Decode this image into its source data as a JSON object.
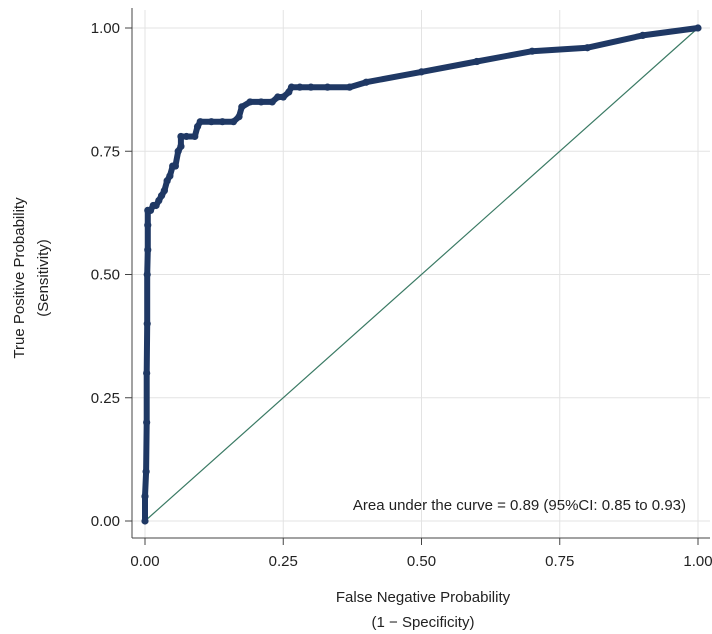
{
  "chart_data": {
    "type": "line",
    "title": "",
    "xlabel_lines": [
      "False Negative Probability",
      "(1 − Specificity)"
    ],
    "ylabel_lines": [
      "True Positive Probability",
      "(Sensitivity)"
    ],
    "xlim": [
      0,
      1
    ],
    "ylim": [
      0,
      1
    ],
    "x_ticks": [
      {
        "value": 0,
        "label": "0.00"
      },
      {
        "value": 0.25,
        "label": "0.25"
      },
      {
        "value": 0.5,
        "label": "0.50"
      },
      {
        "value": 0.75,
        "label": "0.75"
      },
      {
        "value": 1,
        "label": "1.00"
      }
    ],
    "y_ticks": [
      {
        "value": 0,
        "label": "0.00"
      },
      {
        "value": 0.25,
        "label": "0.25"
      },
      {
        "value": 0.5,
        "label": "0.50"
      },
      {
        "value": 0.75,
        "label": "0.75"
      },
      {
        "value": 1,
        "label": "1.00"
      }
    ],
    "grid": true,
    "annotation": "Area under the curve = 0.89 (95%CI: 0.85 to 0.93)",
    "series": [
      {
        "kind": "roc",
        "color": "#1f3864",
        "points": [
          [
            0,
            0
          ],
          [
            0,
            0.05
          ],
          [
            0.002,
            0.1
          ],
          [
            0.003,
            0.2
          ],
          [
            0.003,
            0.3
          ],
          [
            0.004,
            0.4
          ],
          [
            0.004,
            0.5
          ],
          [
            0.005,
            0.55
          ],
          [
            0.005,
            0.6
          ],
          [
            0.005,
            0.63
          ],
          [
            0.01,
            0.63
          ],
          [
            0.015,
            0.64
          ],
          [
            0.02,
            0.64
          ],
          [
            0.025,
            0.65
          ],
          [
            0.03,
            0.66
          ],
          [
            0.035,
            0.67
          ],
          [
            0.04,
            0.69
          ],
          [
            0.045,
            0.7
          ],
          [
            0.05,
            0.72
          ],
          [
            0.055,
            0.72
          ],
          [
            0.06,
            0.75
          ],
          [
            0.065,
            0.76
          ],
          [
            0.065,
            0.78
          ],
          [
            0.075,
            0.78
          ],
          [
            0.09,
            0.78
          ],
          [
            0.095,
            0.8
          ],
          [
            0.1,
            0.81
          ],
          [
            0.12,
            0.81
          ],
          [
            0.14,
            0.81
          ],
          [
            0.16,
            0.81
          ],
          [
            0.17,
            0.82
          ],
          [
            0.175,
            0.84
          ],
          [
            0.19,
            0.85
          ],
          [
            0.21,
            0.85
          ],
          [
            0.23,
            0.85
          ],
          [
            0.24,
            0.86
          ],
          [
            0.25,
            0.86
          ],
          [
            0.26,
            0.87
          ],
          [
            0.265,
            0.88
          ],
          [
            0.28,
            0.88
          ],
          [
            0.3,
            0.88
          ],
          [
            0.33,
            0.88
          ],
          [
            0.37,
            0.88
          ],
          [
            0.4,
            0.89
          ],
          [
            0.5,
            0.911
          ],
          [
            0.6,
            0.932
          ],
          [
            0.7,
            0.953
          ],
          [
            0.8,
            0.96
          ],
          [
            0.9,
            0.985
          ],
          [
            1,
            1
          ]
        ]
      },
      {
        "kind": "reference",
        "color": "#3a7a64",
        "points": [
          [
            0,
            0
          ],
          [
            1,
            1
          ]
        ]
      }
    ]
  }
}
